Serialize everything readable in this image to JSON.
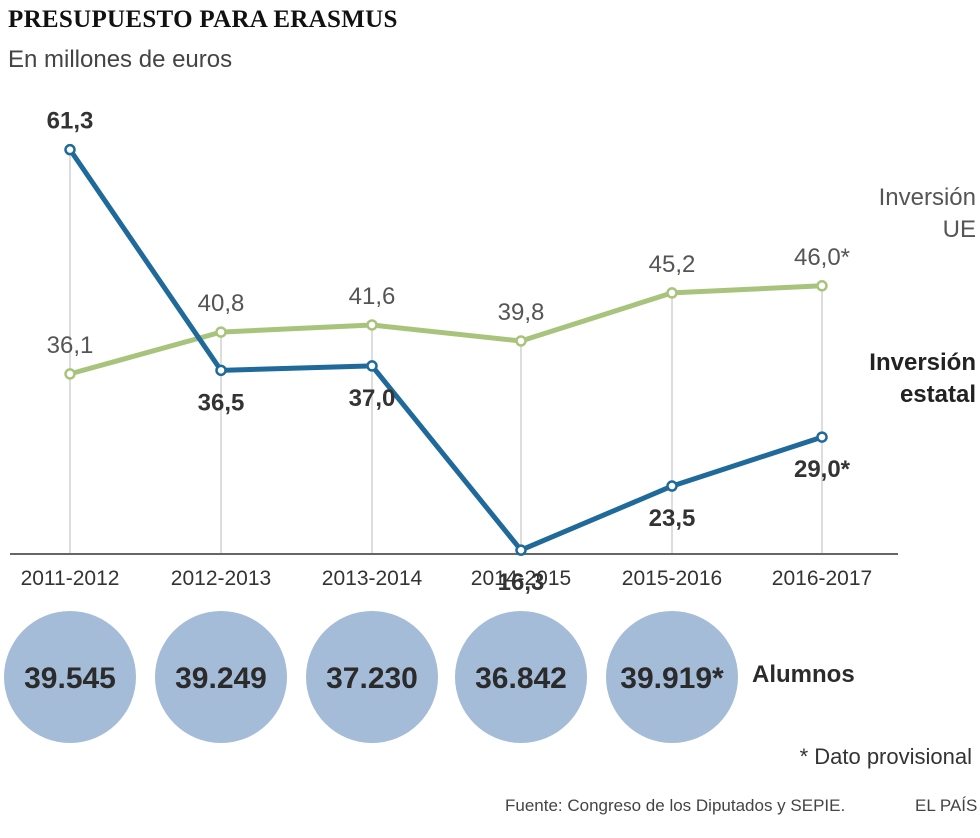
{
  "title": "PRESUPUESTO PARA ERASMUS",
  "subtitle": "En millones de euros",
  "chart_data": {
    "type": "line",
    "categories": [
      "2011-2012",
      "2012-2013",
      "2013-2014",
      "2014-2015",
      "2015-2016",
      "2016-2017"
    ],
    "ylim": [
      0,
      65
    ],
    "grid": "vertical",
    "series": [
      {
        "name_lines": [
          "Inversión",
          "UE"
        ],
        "color": "#a8c47c",
        "values": [
          36.1,
          40.8,
          41.6,
          39.8,
          45.2,
          46.0
        ],
        "labels": [
          "36,1",
          "40,8",
          "41,6",
          "39,8",
          "45,2",
          "46,0*"
        ]
      },
      {
        "name_lines": [
          "Inversión",
          "estatal"
        ],
        "color": "#1f6a9a",
        "values": [
          61.3,
          36.5,
          37.0,
          16.3,
          23.5,
          29.0
        ],
        "labels": [
          "61,3",
          "36,5",
          "37,0",
          "16,3",
          "23,5",
          "29,0*"
        ]
      }
    ]
  },
  "students": {
    "label": "Alumnos",
    "values": [
      "39.545",
      "39.249",
      "37.230",
      "36.842",
      "39.919*"
    ],
    "circle_color": "#a4bcd8"
  },
  "footnote": "* Dato provisional",
  "source": "Fuente: Congreso de los Diputados y SEPIE.",
  "brand": "EL PAÍS"
}
